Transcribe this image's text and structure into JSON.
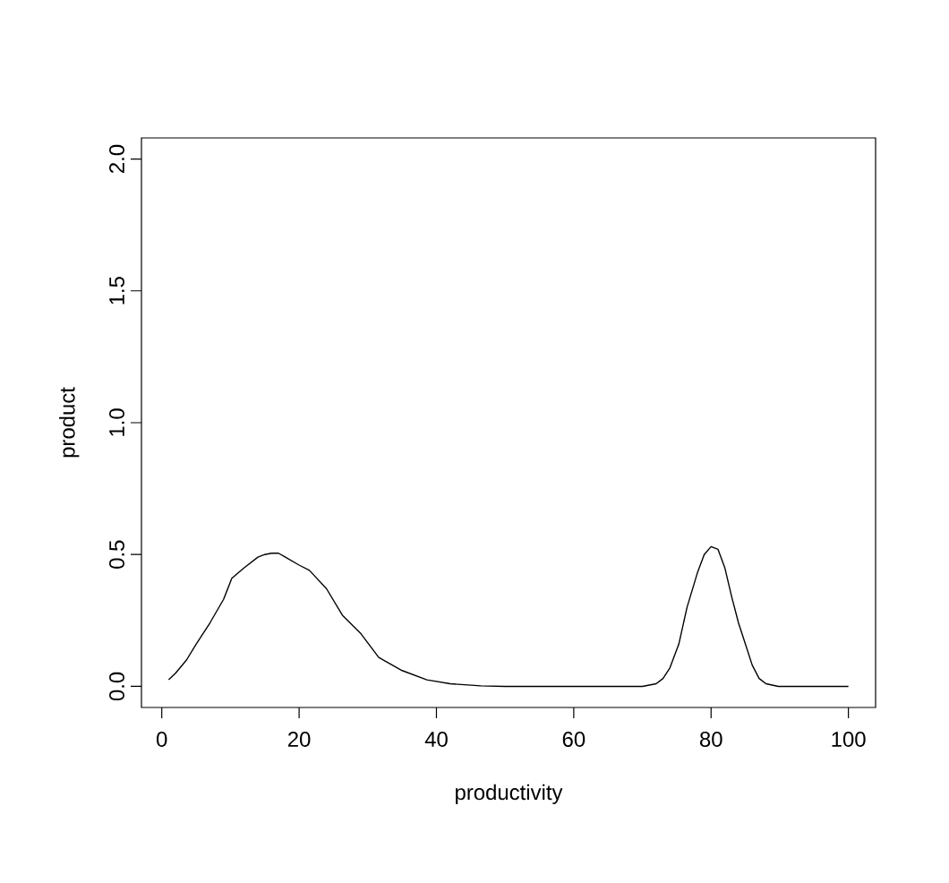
{
  "chart_data": {
    "type": "line",
    "xlabel": "productivity",
    "ylabel": "product",
    "x": [
      1,
      2,
      3.6,
      5,
      7,
      9,
      10.2,
      12,
      14,
      15,
      16,
      17,
      18,
      20,
      21.5,
      24,
      26.3,
      29,
      31.6,
      35,
      38.6,
      42,
      46.5,
      50,
      60,
      70,
      72,
      73,
      74,
      75.3,
      76.5,
      78,
      79,
      80,
      81,
      82,
      83,
      84,
      85,
      86,
      87,
      88,
      89.8,
      95,
      100
    ],
    "values": [
      0.025,
      0.05,
      0.1,
      0.16,
      0.24,
      0.33,
      0.41,
      0.45,
      0.49,
      0.5,
      0.505,
      0.505,
      0.49,
      0.46,
      0.44,
      0.37,
      0.27,
      0.2,
      0.11,
      0.06,
      0.025,
      0.01,
      0.002,
      0,
      0,
      0,
      0.01,
      0.03,
      0.07,
      0.16,
      0.3,
      0.43,
      0.5,
      0.53,
      0.52,
      0.45,
      0.34,
      0.24,
      0.16,
      0.08,
      0.03,
      0.01,
      0,
      0,
      0
    ],
    "color": "#000000",
    "xlim": [
      -2.96,
      103.96
    ],
    "ylim": [
      -0.08,
      2.08
    ],
    "xticks": [
      0,
      20,
      40,
      60,
      80,
      100
    ],
    "yticks": [
      {
        "value": 0,
        "label": "0.0"
      },
      0.5,
      {
        "value": 1,
        "label": "1.0"
      },
      1.5,
      {
        "value": 2,
        "label": "2.0"
      }
    ],
    "grid": false,
    "marker": "none",
    "line_style": "solid"
  }
}
